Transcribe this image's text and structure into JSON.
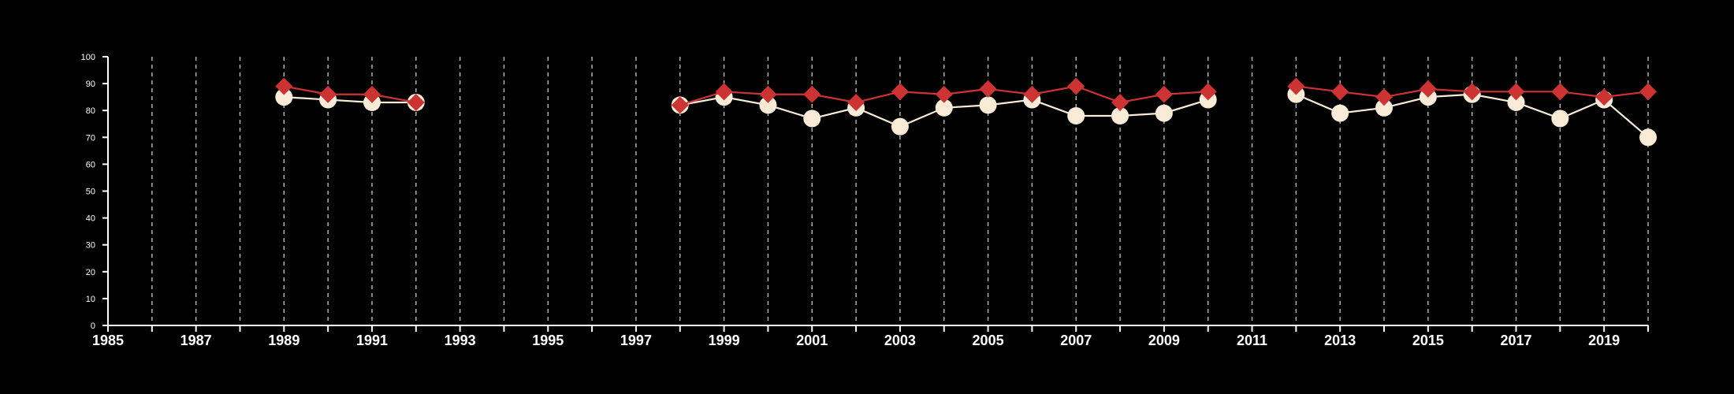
{
  "chart_data": {
    "type": "line",
    "title": "",
    "xlabel": "",
    "ylabel": "",
    "xlim": [
      1985,
      2020
    ],
    "ylim": [
      0,
      100
    ],
    "x_ticks": [
      1985,
      1987,
      1989,
      1991,
      1993,
      1995,
      1997,
      1999,
      2001,
      2003,
      2005,
      2007,
      2009,
      2011,
      2013,
      2015,
      2017,
      2019
    ],
    "y_ticks": [
      0,
      10,
      20,
      30,
      40,
      50,
      60,
      70,
      80,
      90,
      100
    ],
    "vertical_grid": "dashed, one line per year",
    "horizontal_grid": false,
    "legend": "none",
    "series": [
      {
        "color": "#faebd7",
        "marker": "circle",
        "points": [
          [
            1989,
            85
          ],
          [
            1990,
            84
          ],
          [
            1991,
            83
          ],
          [
            1992,
            83
          ],
          [
            1998,
            82
          ],
          [
            1999,
            85
          ],
          [
            2000,
            82
          ],
          [
            2001,
            77
          ],
          [
            2002,
            81
          ],
          [
            2003,
            74
          ],
          [
            2004,
            81
          ],
          [
            2005,
            82
          ],
          [
            2006,
            84
          ],
          [
            2007,
            78
          ],
          [
            2008,
            78
          ],
          [
            2009,
            79
          ],
          [
            2010,
            84
          ],
          [
            2012,
            86
          ],
          [
            2013,
            79
          ],
          [
            2014,
            81
          ],
          [
            2015,
            85
          ],
          [
            2016,
            86
          ],
          [
            2017,
            83
          ],
          [
            2018,
            77
          ],
          [
            2019,
            84
          ],
          [
            2020,
            70
          ]
        ]
      },
      {
        "color": "#cd3333",
        "marker": "diamond",
        "points": [
          [
            1989,
            89
          ],
          [
            1990,
            86
          ],
          [
            1991,
            86
          ],
          [
            1992,
            83
          ],
          [
            1998,
            82
          ],
          [
            1999,
            87
          ],
          [
            2000,
            86
          ],
          [
            2001,
            86
          ],
          [
            2002,
            83
          ],
          [
            2003,
            87
          ],
          [
            2004,
            86
          ],
          [
            2005,
            88
          ],
          [
            2006,
            86
          ],
          [
            2007,
            89
          ],
          [
            2008,
            83
          ],
          [
            2009,
            86
          ],
          [
            2010,
            87
          ],
          [
            2012,
            89
          ],
          [
            2013,
            87
          ],
          [
            2014,
            85
          ],
          [
            2015,
            88
          ],
          [
            2016,
            87
          ],
          [
            2017,
            87
          ],
          [
            2018,
            87
          ],
          [
            2019,
            85
          ],
          [
            2020,
            87
          ]
        ]
      }
    ]
  }
}
